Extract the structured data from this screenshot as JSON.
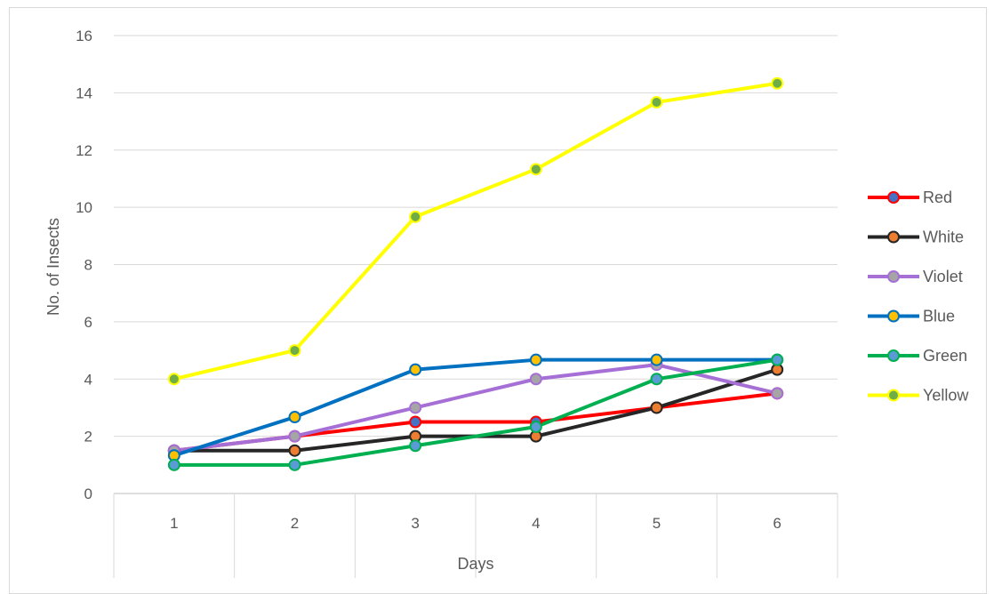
{
  "chart_data": {
    "type": "line",
    "title": "",
    "xlabel": "Days",
    "ylabel": "No. of Insects",
    "categories": [
      "1",
      "2",
      "3",
      "4",
      "5",
      "6"
    ],
    "ylim": [
      0,
      16
    ],
    "yticks": [
      "0",
      "2",
      "4",
      "6",
      "8",
      "10",
      "12",
      "14",
      "16"
    ],
    "grid": true,
    "legend": "right",
    "series": [
      {
        "name": "Red",
        "color": "#ff0000",
        "marker": "#4472c4",
        "values": [
          1.5,
          2,
          2.5,
          2.5,
          3,
          3.5
        ]
      },
      {
        "name": "White",
        "color": "#262626",
        "marker": "#ed7d31",
        "values": [
          1.5,
          1.5,
          2,
          2,
          3,
          4.33
        ]
      },
      {
        "name": "Violet",
        "color": "#a66fd6",
        "marker": "#a5a5a5",
        "values": [
          1.5,
          2,
          3,
          4,
          4.5,
          3.5
        ]
      },
      {
        "name": "Blue",
        "color": "#0070c0",
        "marker": "#ffc000",
        "values": [
          1.33,
          2.67,
          4.33,
          4.67,
          4.67,
          4.67
        ]
      },
      {
        "name": "Green",
        "color": "#00b050",
        "marker": "#5b9bd5",
        "values": [
          1,
          1,
          1.67,
          2.33,
          4,
          4.67
        ]
      },
      {
        "name": "Yellow",
        "color": "#ffff00",
        "marker": "#70ad47",
        "values": [
          4,
          5,
          9.67,
          11.33,
          13.67,
          14.33
        ]
      }
    ]
  }
}
